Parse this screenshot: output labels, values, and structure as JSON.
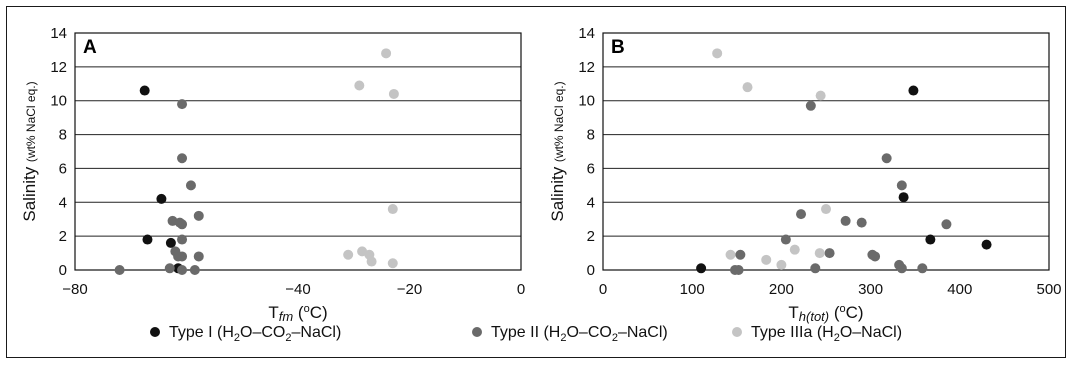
{
  "chart_data": [
    {
      "type": "scatter",
      "panel": "A",
      "xlabel": {
        "prefix": "T",
        "sub": "fm",
        "suffix": " (",
        "sup": "o",
        "end": "C)"
      },
      "ylabel": {
        "main": "Salinity",
        "small": "(wt% NaCl eq.)"
      },
      "xlim": [
        -80,
        0
      ],
      "ylim": [
        0,
        14
      ],
      "xticks": [
        "−80",
        "−40",
        "−20",
        "0"
      ],
      "xtick_values": [
        -80,
        -40,
        -20,
        0
      ],
      "yticks": [
        "0",
        "2",
        "4",
        "6",
        "8",
        "10",
        "12",
        "14"
      ],
      "ytick_values": [
        0,
        2,
        4,
        6,
        8,
        10,
        12,
        14
      ],
      "grid": "horizontal",
      "series": [
        {
          "key": "type1",
          "x": [
            -67.5,
            -64.5,
            -67,
            -62.8,
            -61.5
          ],
          "y": [
            10.6,
            4.2,
            1.8,
            1.6,
            0.1
          ]
        },
        {
          "key": "type2",
          "x": [
            -60.8,
            -60.8,
            -59.2,
            -62.5,
            -61.2,
            -60.8,
            -57.8,
            -62,
            -60.8,
            -61.5,
            -57.8,
            -60.8,
            -63,
            -60.8,
            -58.5,
            -72
          ],
          "y": [
            9.8,
            6.6,
            5.0,
            2.9,
            2.8,
            2.7,
            3.2,
            1.1,
            1.8,
            0.8,
            0.8,
            0.8,
            0.1,
            0.0,
            0.0,
            0.0
          ]
        },
        {
          "key": "type3",
          "x": [
            -24.2,
            -29,
            -22.8,
            -23,
            -31,
            -28.5,
            -27.2,
            -26.8,
            -23
          ],
          "y": [
            12.8,
            10.9,
            10.4,
            3.6,
            0.9,
            1.1,
            0.9,
            0.5,
            0.4
          ]
        }
      ]
    },
    {
      "type": "scatter",
      "panel": "B",
      "xlabel": {
        "prefix": "T",
        "sub": "h(tot)",
        "suffix": " (",
        "sup": "o",
        "end": "C)"
      },
      "ylabel": {
        "main": "Salinity",
        "small": "(wt% NaCl eq.)"
      },
      "xlim": [
        0,
        500
      ],
      "ylim": [
        0,
        14
      ],
      "xticks": [
        "0",
        "100",
        "200",
        "300",
        "400",
        "500"
      ],
      "xtick_values": [
        0,
        100,
        200,
        300,
        400,
        500
      ],
      "yticks": [
        "0",
        "2",
        "4",
        "6",
        "8",
        "10",
        "12",
        "14"
      ],
      "ytick_values": [
        0,
        2,
        4,
        6,
        8,
        10,
        12,
        14
      ],
      "grid": "horizontal",
      "series": [
        {
          "key": "type1",
          "x": [
            348,
            337,
            367,
            430,
            110
          ],
          "y": [
            10.6,
            4.3,
            1.8,
            1.5,
            0.1
          ]
        },
        {
          "key": "type2",
          "x": [
            233,
            318,
            335,
            222,
            272,
            290,
            205,
            254,
            302,
            305,
            332,
            335,
            385,
            358,
            152,
            148,
            154,
            238
          ],
          "y": [
            9.7,
            6.6,
            5.0,
            3.3,
            2.9,
            2.8,
            1.8,
            1.0,
            0.9,
            0.8,
            0.3,
            0.1,
            2.7,
            0.1,
            0.0,
            0.0,
            0.9,
            0.1
          ]
        },
        {
          "key": "type3",
          "x": [
            128,
            162,
            244,
            250,
            143,
            183,
            200,
            215,
            243
          ],
          "y": [
            12.8,
            10.8,
            10.3,
            3.6,
            0.9,
            0.6,
            0.3,
            1.2,
            1.0
          ]
        }
      ]
    }
  ],
  "legend": [
    {
      "key": "type1",
      "label": "Type I (H",
      "sub1": "2",
      "mid": "O–CO",
      "sub2": "2",
      "end": "–NaCl)",
      "color": "#111111"
    },
    {
      "key": "type2",
      "label": "Type II (H",
      "sub1": "2",
      "mid": "O–CO",
      "sub2": "2",
      "end": "–NaCl)",
      "color": "#6a6a6a"
    },
    {
      "key": "type3",
      "label": "Type IIIa (H",
      "sub1": "2",
      "mid": "O–NaCl)",
      "sub2": "",
      "end": "",
      "color": "#c4c4c4"
    }
  ],
  "colors": {
    "type1": "#111111",
    "type2": "#6a6a6a",
    "type3": "#c4c4c4",
    "grid": "#222222"
  }
}
